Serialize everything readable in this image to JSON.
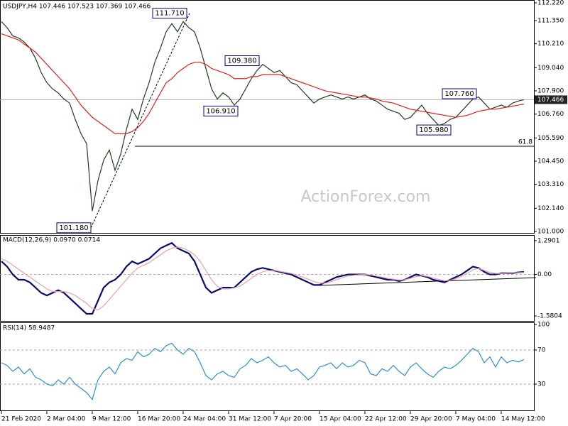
{
  "chart_data": [
    {
      "type": "line",
      "title": "USDJPY,H4  107.446 107.523 107.369 107.466",
      "watermark": "ActionForex.com",
      "ylim": [
        101.0,
        112.22
      ],
      "yticks": [
        {
          "value": 112.22,
          "label": "112.220"
        },
        {
          "value": 111.35,
          "label": "111.350"
        },
        {
          "value": 110.21,
          "label": "110.210"
        },
        {
          "value": 109.04,
          "label": "109.040"
        },
        {
          "value": 107.9,
          "label": "107.900"
        },
        {
          "value": 106.76,
          "label": "106.760"
        },
        {
          "value": 105.59,
          "label": "105.590"
        },
        {
          "value": 104.45,
          "label": "104.450"
        },
        {
          "value": 103.31,
          "label": "103.310"
        },
        {
          "value": 102.14,
          "label": "102.140"
        },
        {
          "value": 101.0,
          "label": "101.000"
        }
      ],
      "series": [
        {
          "name": "USDJPY",
          "color": "#1f3d1f",
          "values": [
            111.3,
            111.0,
            110.6,
            110.5,
            110.3,
            110.0,
            109.5,
            108.8,
            108.3,
            108.0,
            107.8,
            107.5,
            107.3,
            106.5,
            105.8,
            105.3,
            102.0,
            103.5,
            104.5,
            105.0,
            104.0,
            104.8,
            106.0,
            107.0,
            106.5,
            107.5,
            108.3,
            109.3,
            110.0,
            110.8,
            111.2,
            110.8,
            111.3,
            111.0,
            110.8,
            110.0,
            109.0,
            108.0,
            107.5,
            107.8,
            107.6,
            107.2,
            107.5,
            108.0,
            108.5,
            108.9,
            109.2,
            109.0,
            108.8,
            108.9,
            108.6,
            108.3,
            108.2,
            107.9,
            107.6,
            107.3,
            107.5,
            107.6,
            107.7,
            107.6,
            107.5,
            107.6,
            107.5,
            107.6,
            107.7,
            107.5,
            107.4,
            107.2,
            107.0,
            106.9,
            106.8,
            106.5,
            106.6,
            106.9,
            107.2,
            106.8,
            106.5,
            106.2,
            106.3,
            106.5,
            106.6,
            106.9,
            107.2,
            107.5,
            107.6,
            107.3,
            107.0,
            107.1,
            107.2,
            107.1,
            107.3,
            107.4,
            107.466
          ]
        },
        {
          "name": "MA",
          "color": "#e0201c",
          "values": [
            110.7,
            110.6,
            110.5,
            110.4,
            110.2,
            110.0,
            109.8,
            109.5,
            109.2,
            108.9,
            108.6,
            108.3,
            108.0,
            107.6,
            107.2,
            106.9,
            106.6,
            106.4,
            106.2,
            106.0,
            105.8,
            105.8,
            105.8,
            105.9,
            106.1,
            106.4,
            106.8,
            107.3,
            107.8,
            108.3,
            108.5,
            108.8,
            109.0,
            109.2,
            109.3,
            109.3,
            109.2,
            109.0,
            108.9,
            108.8,
            108.7,
            108.5,
            108.5,
            108.5,
            108.6,
            108.6,
            108.7,
            108.7,
            108.7,
            108.7,
            108.6,
            108.5,
            108.4,
            108.3,
            108.2,
            108.1,
            108.0,
            107.9,
            107.85,
            107.8,
            107.75,
            107.7,
            107.65,
            107.6,
            107.6,
            107.55,
            107.5,
            107.4,
            107.35,
            107.3,
            107.2,
            107.1,
            107.0,
            106.95,
            106.9,
            106.85,
            106.8,
            106.75,
            106.7,
            106.65,
            106.6,
            106.65,
            106.7,
            106.8,
            106.9,
            106.95,
            107.0,
            107.0,
            107.05,
            107.1,
            107.15,
            107.2,
            107.25
          ]
        }
      ],
      "annotations": [
        {
          "value": 111.71,
          "label": "111.710"
        },
        {
          "value": 109.38,
          "label": "109.380"
        },
        {
          "value": 106.91,
          "label": "106.910"
        },
        {
          "value": 107.76,
          "label": "107.760"
        },
        {
          "value": 105.98,
          "label": "105.980"
        },
        {
          "value": 101.18,
          "label": "101.180"
        }
      ],
      "last": {
        "value": 107.466,
        "label": "107.466"
      },
      "retracement": {
        "value": 105.18,
        "label": "61.8"
      }
    },
    {
      "type": "line",
      "title": "MACD(12,26,9) 0.0970 0.0714",
      "ylim": [
        -1.77,
        1.45
      ],
      "yticks": [
        1.2901,
        {
          "value": 0,
          "label": "0.00"
        },
        -1.5804
      ],
      "levels": [
        0
      ],
      "series": [
        {
          "name": "MACD",
          "color": "#0a0a6e",
          "values": [
            0.5,
            0.3,
            0.0,
            -0.2,
            -0.2,
            -0.3,
            -0.5,
            -0.7,
            -0.8,
            -0.7,
            -0.6,
            -0.7,
            -0.9,
            -1.1,
            -1.3,
            -1.5,
            -1.5,
            -1.0,
            -0.5,
            -0.3,
            -0.2,
            0.0,
            0.3,
            0.5,
            0.4,
            0.5,
            0.6,
            0.8,
            1.0,
            1.1,
            1.2,
            1.0,
            0.9,
            0.8,
            0.5,
            0.0,
            -0.5,
            -0.7,
            -0.6,
            -0.5,
            -0.5,
            -0.5,
            -0.3,
            -0.1,
            0.1,
            0.2,
            0.25,
            0.2,
            0.15,
            0.1,
            0.05,
            0.0,
            -0.1,
            -0.2,
            -0.3,
            -0.4,
            -0.4,
            -0.3,
            -0.2,
            -0.1,
            -0.05,
            0.0,
            0.0,
            0.0,
            0.0,
            -0.05,
            -0.1,
            -0.15,
            -0.2,
            -0.2,
            -0.25,
            -0.2,
            -0.1,
            0.0,
            -0.05,
            -0.1,
            -0.2,
            -0.25,
            -0.3,
            -0.2,
            -0.1,
            0.0,
            0.15,
            0.3,
            0.25,
            0.1,
            0.0,
            0.0,
            0.05,
            0.05,
            0.05,
            0.08,
            0.097
          ]
        },
        {
          "name": "Signal",
          "color": "#e8a0a8",
          "values": [
            0.6,
            0.5,
            0.35,
            0.2,
            0.05,
            -0.1,
            -0.25,
            -0.4,
            -0.55,
            -0.65,
            -0.65,
            -0.65,
            -0.7,
            -0.8,
            -0.95,
            -1.1,
            -1.3,
            -1.35,
            -1.2,
            -0.95,
            -0.7,
            -0.45,
            -0.2,
            0.05,
            0.25,
            0.35,
            0.45,
            0.6,
            0.75,
            0.9,
            1.0,
            1.05,
            1.0,
            0.9,
            0.75,
            0.5,
            0.15,
            -0.2,
            -0.45,
            -0.55,
            -0.55,
            -0.5,
            -0.45,
            -0.3,
            -0.15,
            0.0,
            0.1,
            0.15,
            0.15,
            0.12,
            0.08,
            0.04,
            -0.02,
            -0.1,
            -0.18,
            -0.27,
            -0.33,
            -0.33,
            -0.28,
            -0.2,
            -0.12,
            -0.06,
            -0.03,
            -0.01,
            0.0,
            -0.02,
            -0.06,
            -0.1,
            -0.15,
            -0.18,
            -0.21,
            -0.2,
            -0.15,
            -0.08,
            -0.05,
            -0.07,
            -0.13,
            -0.19,
            -0.24,
            -0.22,
            -0.16,
            -0.08,
            0.05,
            0.18,
            0.23,
            0.16,
            0.08,
            0.04,
            0.04,
            0.05,
            0.06,
            0.07,
            0.0714
          ]
        }
      ]
    },
    {
      "type": "line",
      "title": "RSI(14) 58.9487",
      "ylim": [
        0,
        100
      ],
      "yticks": [
        100,
        70,
        30
      ],
      "levels": [
        70,
        30
      ],
      "categories": [
        "21 Feb 2020",
        null,
        null,
        null,
        null,
        null,
        null,
        null,
        "2 Mar 04:00",
        null,
        null,
        null,
        null,
        null,
        null,
        null,
        "9 Mar 12:00",
        null,
        null,
        null,
        null,
        null,
        null,
        null,
        "16 Mar 20:00",
        null,
        null,
        null,
        null,
        null,
        null,
        null,
        "24 Mar 04:00",
        null,
        null,
        null,
        null,
        null,
        null,
        null,
        "31 Mar 12:00",
        null,
        null,
        null,
        null,
        null,
        null,
        null,
        "7 Apr 20:00",
        null,
        null,
        null,
        null,
        null,
        null,
        null,
        "15 Apr 04:00",
        null,
        null,
        null,
        null,
        null,
        null,
        null,
        "22 Apr 12:00",
        null,
        null,
        null,
        null,
        null,
        null,
        null,
        "29 Apr 20:00",
        null,
        null,
        null,
        null,
        null,
        null,
        null,
        "7 May 04:00",
        null,
        null,
        null,
        null,
        null,
        null,
        null,
        "14 May 12:00",
        null,
        null,
        null,
        null
      ],
      "series": [
        {
          "name": "RSI",
          "color": "#2b8fd6",
          "values": [
            55,
            52,
            45,
            50,
            42,
            48,
            38,
            35,
            30,
            28,
            35,
            30,
            38,
            30,
            25,
            20,
            12,
            35,
            45,
            50,
            42,
            55,
            60,
            58,
            68,
            62,
            65,
            72,
            68,
            75,
            78,
            70,
            65,
            72,
            68,
            55,
            40,
            35,
            42,
            45,
            40,
            38,
            48,
            52,
            60,
            55,
            58,
            62,
            55,
            50,
            52,
            45,
            48,
            42,
            35,
            40,
            50,
            52,
            55,
            48,
            55,
            50,
            52,
            58,
            55,
            42,
            40,
            48,
            45,
            52,
            45,
            40,
            50,
            55,
            48,
            42,
            38,
            45,
            50,
            48,
            52,
            58,
            65,
            72,
            68,
            55,
            62,
            50,
            62,
            55,
            58,
            56,
            58.9487
          ]
        }
      ]
    }
  ]
}
